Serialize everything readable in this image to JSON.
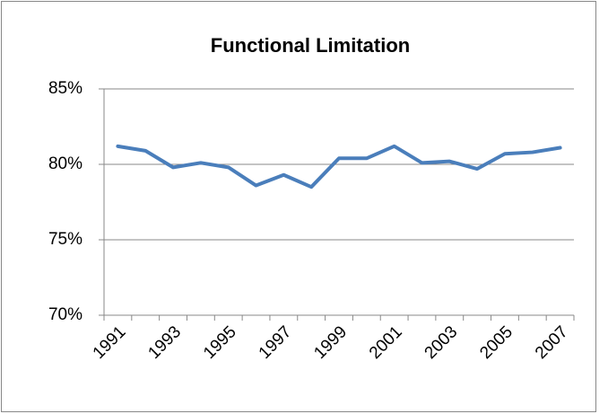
{
  "chart_data": {
    "type": "line",
    "title": "Functional Limitation",
    "categories": [
      "1991",
      null,
      "1993",
      null,
      "1995",
      null,
      "1997",
      null,
      "1999",
      null,
      "2001",
      null,
      "2003",
      null,
      "2005",
      null,
      "2007"
    ],
    "series": [
      {
        "color": "#4a7ebb",
        "values": [
          81.2,
          80.9,
          79.8,
          80.1,
          79.8,
          78.6,
          79.3,
          78.5,
          80.4,
          80.4,
          81.2,
          80.1,
          80.2,
          79.7,
          80.7,
          80.8,
          81.1
        ]
      }
    ],
    "ylim": [
      70,
      85
    ],
    "yticks": [
      {
        "value": 70,
        "label": "70%"
      },
      {
        "value": 75,
        "label": "75%"
      },
      {
        "value": 80,
        "label": "80%"
      },
      {
        "value": 85,
        "label": "85%"
      }
    ],
    "grid": true
  }
}
